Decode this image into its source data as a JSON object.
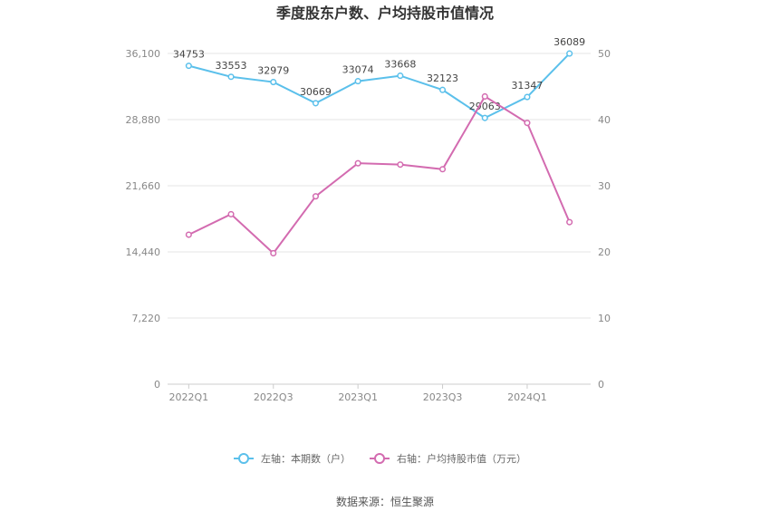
{
  "chart_data": {
    "type": "line",
    "title": "季度股东户数、户均持股市值情况",
    "categories": [
      "2022Q1",
      "2022Q2",
      "2022Q3",
      "2022Q4",
      "2023Q1",
      "2023Q2",
      "2023Q3",
      "2023Q4",
      "2024Q1",
      "2024Q2"
    ],
    "x_tick_labels": [
      "2022Q1",
      "2022Q3",
      "2023Q1",
      "2023Q3",
      "2024Q1"
    ],
    "y_left": {
      "ticks": [
        "0",
        "7,220",
        "14,440",
        "21,660",
        "28,880",
        "36,100"
      ],
      "range": [
        0,
        36100
      ]
    },
    "y_right": {
      "ticks": [
        "0",
        "10",
        "20",
        "30",
        "40",
        "50"
      ],
      "range": [
        0,
        50
      ]
    },
    "series": [
      {
        "name": "左轴：本期数（户）",
        "axis": "left",
        "color": "#5bc0eb",
        "values": [
          34753,
          33553,
          32979,
          30669,
          33074,
          33668,
          32123,
          29063,
          31347,
          36089
        ],
        "labels": [
          "34753",
          "33553",
          "32979",
          "30669",
          "33074",
          "33668",
          "32123",
          "29063",
          "31347",
          "36089"
        ]
      },
      {
        "name": "右轴：户均持股市值（万元）",
        "axis": "right",
        "color": "#d36bb0",
        "values": [
          22.6,
          25.7,
          19.8,
          28.4,
          33.4,
          33.2,
          32.5,
          43.5,
          39.5,
          24.5
        ]
      }
    ],
    "grid": true,
    "legend_position": "bottom"
  },
  "source": "数据来源：恒生聚源"
}
